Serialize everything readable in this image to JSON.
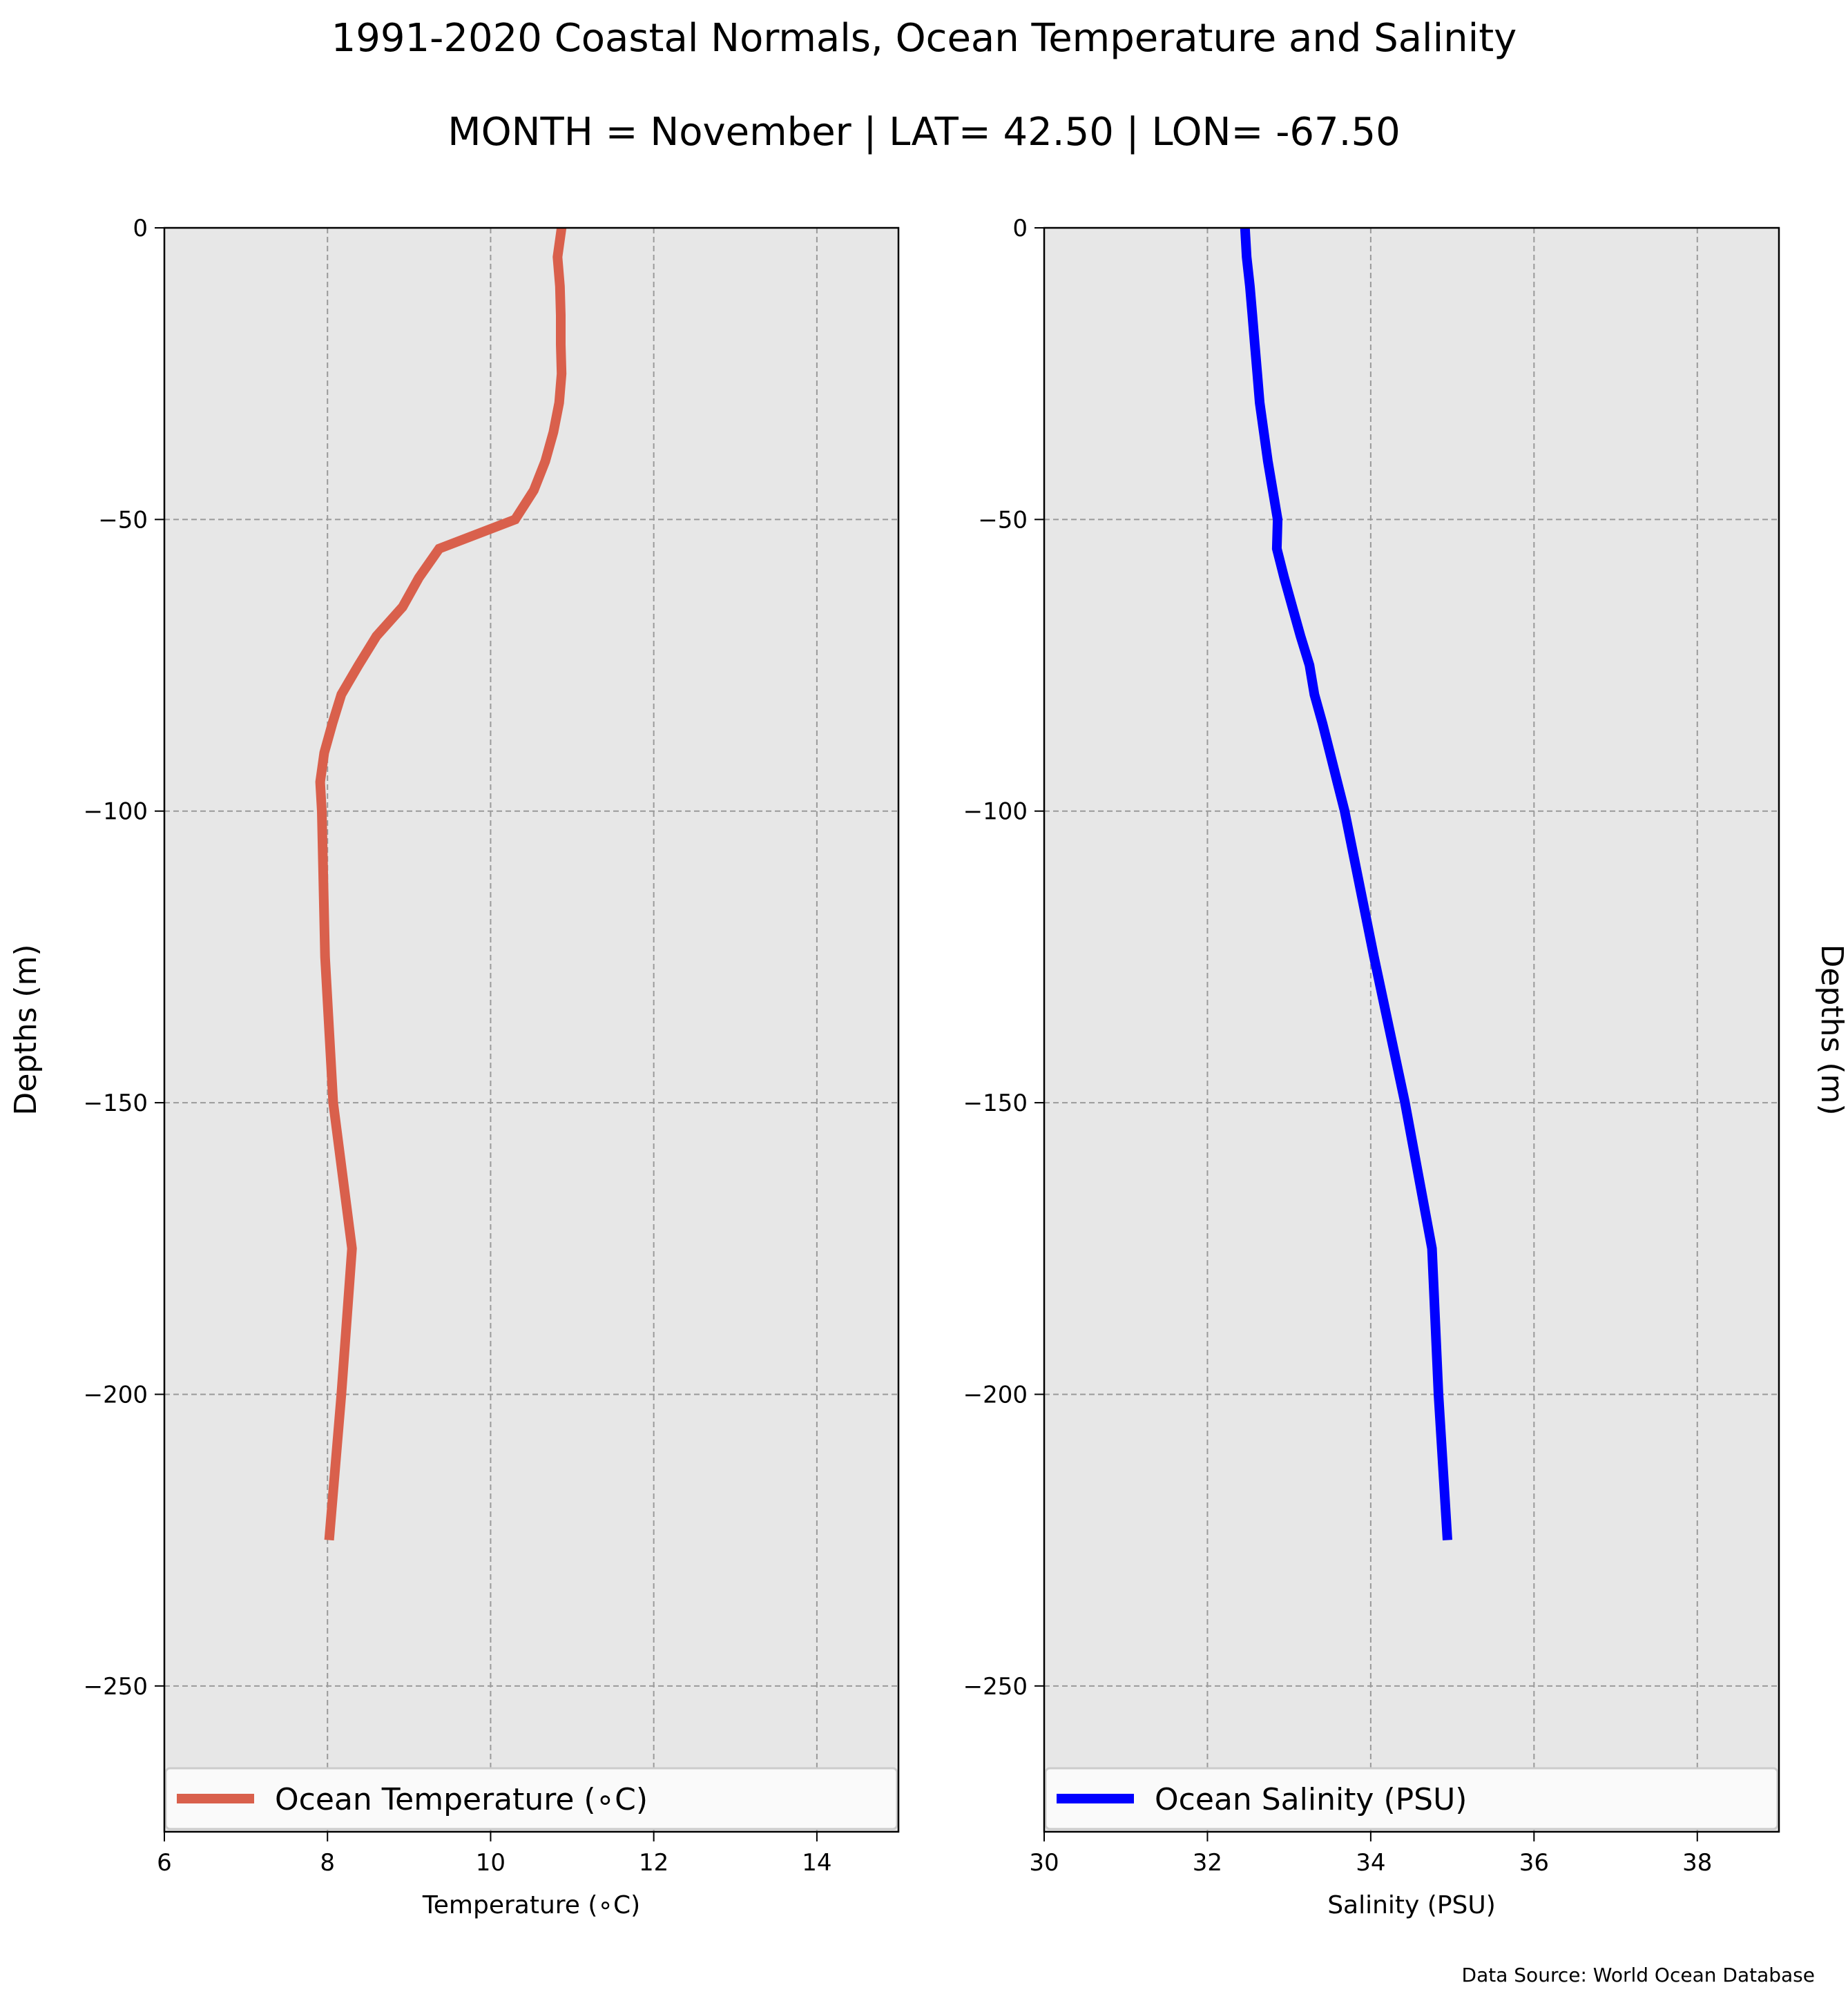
{
  "title": "1991-2020 Coastal Normals, Ocean Temperature and Salinity",
  "subtitle": "MONTH = November | LAT= 42.50 | LON= -67.50",
  "source": "Data Source: World Ocean Database",
  "chart_data": [
    {
      "type": "line",
      "xlabel": "Temperature (∘C)",
      "ylabel": "Depths (m)",
      "xlim": [
        6,
        15
      ],
      "ylim": [
        -275,
        0
      ],
      "xticks": [
        "6",
        "8",
        "10",
        "12",
        "14"
      ],
      "yticks": [
        "0",
        "−50",
        "−100",
        "−150",
        "−200",
        "−250"
      ],
      "grid": true,
      "legend_position": "bottom",
      "color": "#d9604c",
      "series": [
        {
          "name": "Ocean Temperature (∘C)",
          "points": [
            [
              10.87,
              0
            ],
            [
              10.82,
              -5
            ],
            [
              10.85,
              -10
            ],
            [
              10.86,
              -15
            ],
            [
              10.86,
              -20
            ],
            [
              10.87,
              -25
            ],
            [
              10.84,
              -30
            ],
            [
              10.77,
              -35
            ],
            [
              10.67,
              -40
            ],
            [
              10.53,
              -45
            ],
            [
              10.3,
              -50
            ],
            [
              9.37,
              -55
            ],
            [
              9.12,
              -60
            ],
            [
              8.92,
              -65
            ],
            [
              8.6,
              -70
            ],
            [
              8.38,
              -75
            ],
            [
              8.17,
              -80
            ],
            [
              8.06,
              -85
            ],
            [
              7.96,
              -90
            ],
            [
              7.91,
              -95
            ],
            [
              7.93,
              -100
            ],
            [
              7.97,
              -125
            ],
            [
              8.07,
              -150
            ],
            [
              8.3,
              -175
            ],
            [
              8.17,
              -200
            ],
            [
              8.02,
              -225
            ]
          ]
        }
      ]
    },
    {
      "type": "line",
      "xlabel": "Salinity (PSU)",
      "ylabel": "Depths (m)",
      "xlim": [
        30,
        39
      ],
      "ylim": [
        -275,
        0
      ],
      "xticks": [
        "30",
        "32",
        "34",
        "36",
        "38"
      ],
      "yticks": [
        "0",
        "−50",
        "−100",
        "−150",
        "−200",
        "−250"
      ],
      "grid": true,
      "legend_position": "bottom",
      "color": "#0000ff",
      "series": [
        {
          "name": "Ocean Salinity (PSU)",
          "points": [
            [
              32.46,
              0
            ],
            [
              32.48,
              -5
            ],
            [
              32.52,
              -10
            ],
            [
              32.55,
              -15
            ],
            [
              32.58,
              -20
            ],
            [
              32.61,
              -25
            ],
            [
              32.64,
              -30
            ],
            [
              32.69,
              -35
            ],
            [
              32.74,
              -40
            ],
            [
              32.8,
              -45
            ],
            [
              32.86,
              -50
            ],
            [
              32.85,
              -55
            ],
            [
              32.94,
              -60
            ],
            [
              33.04,
              -65
            ],
            [
              33.14,
              -70
            ],
            [
              33.25,
              -75
            ],
            [
              33.31,
              -80
            ],
            [
              33.41,
              -85
            ],
            [
              33.5,
              -90
            ],
            [
              33.59,
              -95
            ],
            [
              33.68,
              -100
            ],
            [
              34.04,
              -125
            ],
            [
              34.42,
              -150
            ],
            [
              34.75,
              -175
            ],
            [
              34.83,
              -200
            ],
            [
              34.94,
              -225
            ]
          ]
        }
      ]
    }
  ]
}
